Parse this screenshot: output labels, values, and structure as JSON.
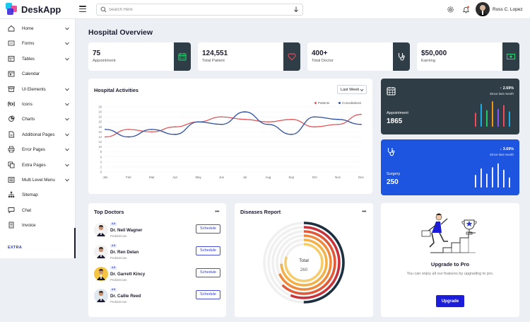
{
  "app": {
    "name": "DeskApp"
  },
  "search": {
    "placeholder": "Search Here"
  },
  "user": {
    "name": "Ross C. Lopez"
  },
  "sidebar": {
    "items": [
      {
        "label": "Home",
        "icon": "home-icon",
        "expandable": true
      },
      {
        "label": "Forms",
        "icon": "form-icon",
        "expandable": true
      },
      {
        "label": "Tables",
        "icon": "table-icon",
        "expandable": true
      },
      {
        "label": "Calendar",
        "icon": "calendar-icon",
        "expandable": false
      },
      {
        "label": "UI Elements",
        "icon": "archive-icon",
        "expandable": true
      },
      {
        "label": "Icons",
        "icon": "command-icon",
        "expandable": true
      },
      {
        "label": "Charts",
        "icon": "pie-chart-icon",
        "expandable": true
      },
      {
        "label": "Additional Pages",
        "icon": "file-icon",
        "expandable": true
      },
      {
        "label": "Error Pages",
        "icon": "printer-icon",
        "expandable": true
      },
      {
        "label": "Extra Pages",
        "icon": "copy-icon",
        "expandable": true
      },
      {
        "label": "Multi Level Menu",
        "icon": "list-icon",
        "expandable": true
      },
      {
        "label": "Sitemap",
        "icon": "sitemap-icon",
        "expandable": false
      },
      {
        "label": "Chat",
        "icon": "chat-icon",
        "expandable": false
      },
      {
        "label": "Invoice",
        "icon": "invoice-icon",
        "expandable": false
      }
    ],
    "extra_label": "EXTRA"
  },
  "page": {
    "title": "Hospital Overview"
  },
  "stats": [
    {
      "value": "75",
      "label": "Appointment",
      "icon": "calendar-icon",
      "icon_color": "#2ecc71"
    },
    {
      "value": "124,551",
      "label": "Total Patient",
      "icon": "heart-icon",
      "icon_color": "#e74c5c"
    },
    {
      "value": "400+",
      "label": "Total Doctor",
      "icon": "stethoscope-icon",
      "icon_color": "#ffffff"
    },
    {
      "value": "$50,000",
      "label": "Earning",
      "icon": "money-icon",
      "icon_color": "#2ecc71"
    }
  ],
  "activities": {
    "title": "Hospital Activities",
    "range": "Last Week",
    "legend": [
      "Patients",
      "Consultations"
    ]
  },
  "chart_data": {
    "type": "line",
    "x": [
      "Jan",
      "Feb",
      "Mar",
      "Apr",
      "May",
      "Jun",
      "Jul",
      "Aug",
      "Sep",
      "Oct",
      "Nov",
      "Dec"
    ],
    "ylim": [
      0,
      26
    ],
    "yticks": [
      0,
      2,
      4,
      6,
      8,
      10,
      12,
      14,
      16,
      18,
      20,
      22,
      24,
      26
    ],
    "series": [
      {
        "name": "Patients",
        "color": "#e0575b",
        "values": [
          14,
          17,
          16,
          18,
          20,
          22,
          21,
          20,
          21,
          18,
          19,
          23
        ]
      },
      {
        "name": "Consultations",
        "color": "#2f4fa3",
        "values": [
          17,
          14,
          17,
          15,
          20,
          19,
          24,
          19,
          15,
          22,
          21,
          19
        ]
      }
    ]
  },
  "metrics": [
    {
      "label": "Appointment",
      "value": "1865",
      "change": "↑ 2.69%",
      "since": "Since last month",
      "icon": "calendar-icon",
      "bg": "#2f3d46",
      "bars": [
        0.55,
        0.9,
        0.65,
        1.0,
        0.7,
        0.85,
        0.6
      ],
      "bar_colors": [
        "#ff4f61",
        "#23b5f0",
        "#2dd36f",
        "#ff9f1a",
        "#8f5bff",
        "#ff4f61",
        "#23b5f0"
      ]
    },
    {
      "label": "Surgery",
      "value": "250",
      "change": "↓ 3.69%",
      "since": "Since last month",
      "icon": "stethoscope-icon",
      "bg": "#1d55e0",
      "bars": [
        0.5,
        0.75,
        0.55,
        0.8,
        0.95,
        0.7,
        0.4
      ],
      "bar_colors": [
        "#ffffff",
        "#ffffff",
        "#ffffff",
        "#ffffff",
        "#ffffff",
        "#ffffff",
        "#ffffff"
      ]
    }
  ],
  "top_doctors": {
    "title": "Top Doctors",
    "doctors": [
      {
        "name": "Dr. Neil Wagner",
        "specialty": "Pediatrician",
        "rating": "4.9",
        "avatar_bg": "#f2f2f2",
        "action": "Schedule"
      },
      {
        "name": "Dr. Ren Delan",
        "specialty": "Pediatrician",
        "rating": "4.9",
        "avatar_bg": "#f2f2f2",
        "action": "Schedule"
      },
      {
        "name": "Dr. Garrett Kincy",
        "specialty": "Pediatrician",
        "rating": "4.9",
        "avatar_bg": "#f5c542",
        "action": "Schedule"
      },
      {
        "name": "Dr. Callie Reed",
        "specialty": "Pediatrician",
        "rating": "4.9",
        "avatar_bg": "#dfe7ef",
        "action": "Schedule"
      }
    ]
  },
  "diseases": {
    "title": "Diseases Report",
    "total_label": "Total",
    "total_value": "260",
    "rings": [
      {
        "fraction": 0.5,
        "color": "#1c3040"
      },
      {
        "fraction": 0.56,
        "color": "#c8323a"
      },
      {
        "fraction": 0.62,
        "color": "#e05a3a"
      },
      {
        "fraction": 0.68,
        "color": "#ef8a3c"
      },
      {
        "fraction": 0.74,
        "color": "#f3b14a"
      },
      {
        "fraction": 0.8,
        "color": "#f6cd6d"
      }
    ]
  },
  "upgrade": {
    "title": "Upgrade to Pro",
    "description": "You can enjoy all our features by upgrading to pro.",
    "button": "Upgrade"
  }
}
